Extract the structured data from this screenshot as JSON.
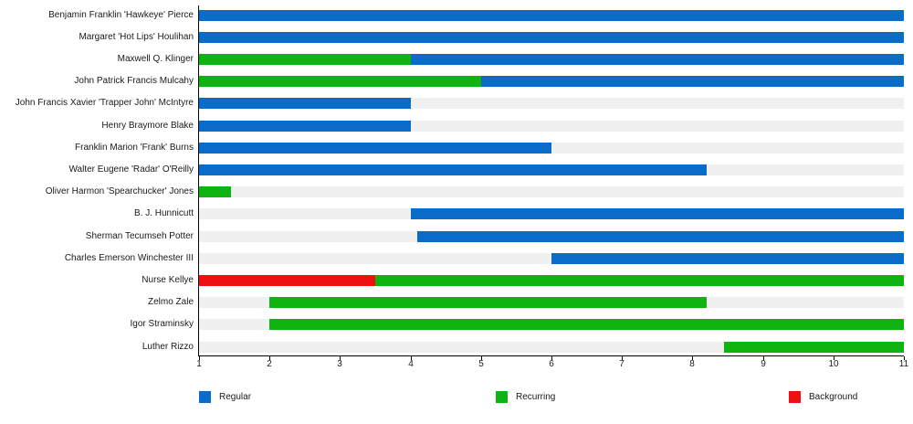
{
  "colors": {
    "regular": "#0b6bc8",
    "recurring": "#10b410",
    "background": "#ee1111",
    "track": "#f0f0f0",
    "axis": "#000000",
    "text": "#1a1a1a"
  },
  "chart_data": {
    "type": "bar",
    "orientation": "horizontal",
    "title": "",
    "xlabel": "",
    "ylabel": "",
    "grid": false,
    "legend_position": "bottom",
    "x_axis": {
      "min": 1,
      "max": 11,
      "ticks": [
        1,
        2,
        3,
        4,
        5,
        6,
        7,
        8,
        9,
        10,
        11
      ]
    },
    "legend": [
      {
        "label": "Regular",
        "role": "regular"
      },
      {
        "label": "Recurring",
        "role": "recurring"
      },
      {
        "label": "Background",
        "role": "background"
      }
    ],
    "rows": [
      {
        "label": "Benjamin Franklin 'Hawkeye' Pierce",
        "segments": [
          {
            "role": "regular",
            "start": 1,
            "end": 11
          }
        ]
      },
      {
        "label": "Margaret 'Hot Lips' Houlihan",
        "segments": [
          {
            "role": "regular",
            "start": 1,
            "end": 11
          }
        ]
      },
      {
        "label": "Maxwell Q. Klinger",
        "segments": [
          {
            "role": "recurring",
            "start": 1,
            "end": 4
          },
          {
            "role": "regular",
            "start": 4,
            "end": 11
          }
        ]
      },
      {
        "label": "John Patrick Francis Mulcahy",
        "segments": [
          {
            "role": "recurring",
            "start": 1,
            "end": 5
          },
          {
            "role": "regular",
            "start": 5,
            "end": 11
          }
        ]
      },
      {
        "label": "John Francis Xavier 'Trapper John' McIntyre",
        "segments": [
          {
            "role": "regular",
            "start": 1,
            "end": 4
          }
        ]
      },
      {
        "label": "Henry Braymore Blake",
        "segments": [
          {
            "role": "regular",
            "start": 1,
            "end": 4
          }
        ]
      },
      {
        "label": "Franklin Marion 'Frank' Burns",
        "segments": [
          {
            "role": "regular",
            "start": 1,
            "end": 6
          }
        ]
      },
      {
        "label": "Walter Eugene 'Radar' O'Reilly",
        "segments": [
          {
            "role": "regular",
            "start": 1,
            "end": 8.2
          }
        ]
      },
      {
        "label": "Oliver Harmon 'Spearchucker' Jones",
        "segments": [
          {
            "role": "recurring",
            "start": 1,
            "end": 1.45
          }
        ]
      },
      {
        "label": "B. J. Hunnicutt",
        "segments": [
          {
            "role": "regular",
            "start": 4,
            "end": 11
          }
        ]
      },
      {
        "label": "Sherman Tecumseh Potter",
        "segments": [
          {
            "role": "regular",
            "start": 4.1,
            "end": 11
          }
        ]
      },
      {
        "label": "Charles Emerson Winchester III",
        "segments": [
          {
            "role": "regular",
            "start": 6,
            "end": 11
          }
        ]
      },
      {
        "label": "Nurse Kellye",
        "segments": [
          {
            "role": "background",
            "start": 1,
            "end": 3.5
          },
          {
            "role": "recurring",
            "start": 3.5,
            "end": 11
          }
        ]
      },
      {
        "label": "Zelmo Zale",
        "segments": [
          {
            "role": "recurring",
            "start": 2,
            "end": 8.2
          }
        ]
      },
      {
        "label": "Igor Straminsky",
        "segments": [
          {
            "role": "recurring",
            "start": 2,
            "end": 11
          }
        ]
      },
      {
        "label": "Luther Rizzo",
        "segments": [
          {
            "role": "recurring",
            "start": 8.45,
            "end": 11
          }
        ]
      }
    ]
  }
}
